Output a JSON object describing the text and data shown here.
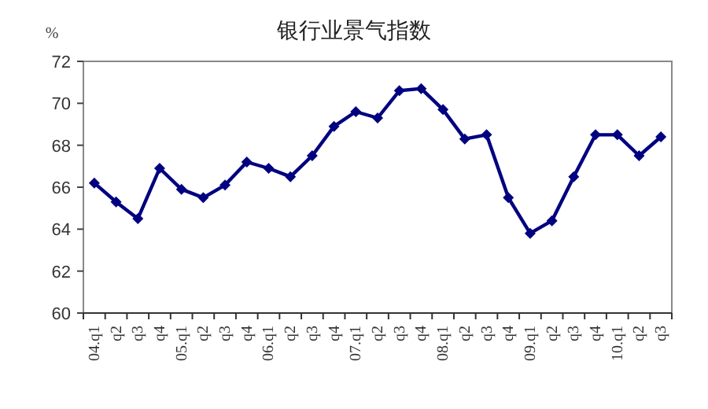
{
  "chart_data": {
    "type": "line",
    "title": "银行业景气指数",
    "ylabel": "%",
    "categories": [
      "04.q1",
      "q2",
      "q3",
      "q4",
      "05.q1",
      "q2",
      "q3",
      "q4",
      "06.q1",
      "q2",
      "q3",
      "q4",
      "07.q1",
      "q2",
      "q3",
      "q4",
      "08.q1",
      "q2",
      "q3",
      "q4",
      "09.q1",
      "q2",
      "q3",
      "q4",
      "10.q1",
      "q2",
      "q3"
    ],
    "series": [
      {
        "color": "#000080",
        "values": [
          66.2,
          65.3,
          64.5,
          66.9,
          65.9,
          65.5,
          66.1,
          67.2,
          66.9,
          66.5,
          67.5,
          68.9,
          69.6,
          69.3,
          70.6,
          70.7,
          69.7,
          68.3,
          68.5,
          65.5,
          63.8,
          64.4,
          66.5,
          68.5,
          68.5,
          67.5,
          68.4
        ]
      }
    ],
    "ylim": [
      60,
      72
    ],
    "yticks": [
      60,
      62,
      64,
      66,
      68,
      70,
      72
    ],
    "marker": "diamond",
    "line_style": "solid",
    "grid": false
  }
}
